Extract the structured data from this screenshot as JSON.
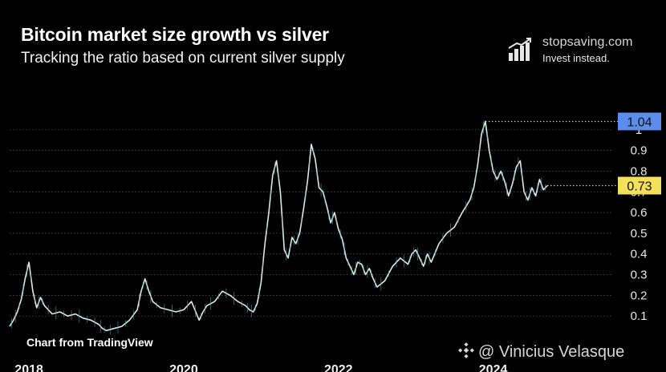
{
  "header": {
    "title": "Bitcoin market size growth vs silver",
    "subtitle": "Tracking the ratio based on current silver supply"
  },
  "brand": {
    "name": "stopsaving.com",
    "tagline": "Invest instead.",
    "icon": "bar-chart-growth-icon"
  },
  "footer": {
    "credit": "Chart from TradingView",
    "watermark": "@ Vinicius Velasque",
    "watermark_icon": "binance-logo-icon"
  },
  "colors": {
    "background": "#000000",
    "line": "#d9e8e6",
    "line_accent": "#5aa89e",
    "max_label": "#5b8def",
    "current_label": "#f5e05a",
    "marker_line": "#9be3c9"
  },
  "chart_data": {
    "type": "line",
    "title": "Bitcoin market size growth vs silver",
    "subtitle": "Tracking the ratio based on current silver supply",
    "xlabel": "",
    "ylabel": "",
    "x_ticks": [
      "2018",
      "2020",
      "2022",
      "2024"
    ],
    "y_ticks": [
      "0.1",
      "0.2",
      "0.3",
      "0.4",
      "0.5",
      "0.6",
      "0.7",
      "0.8",
      "0.9",
      "1"
    ],
    "ylim": [
      0,
      1.1
    ],
    "xlim": [
      2017.75,
      2025.55
    ],
    "grid": true,
    "annotations": [
      {
        "label": "1.04",
        "value": 1.04,
        "kind": "max"
      },
      {
        "label": "0.73",
        "value": 0.73,
        "kind": "current"
      }
    ],
    "series": [
      {
        "x": [
          2017.75,
          2017.8,
          2017.85,
          2017.9,
          2017.95,
          2018.0,
          2018.05,
          2018.1,
          2018.15,
          2018.2,
          2018.3,
          2018.4,
          2018.5,
          2018.6,
          2018.7,
          2018.8,
          2018.9,
          2018.95,
          2019.0,
          2019.1,
          2019.2,
          2019.3,
          2019.4,
          2019.45,
          2019.5,
          2019.55,
          2019.6,
          2019.7,
          2019.8,
          2019.9,
          2020.0,
          2020.1,
          2020.2,
          2020.25,
          2020.3,
          2020.4,
          2020.5,
          2020.6,
          2020.7,
          2020.8,
          2020.85,
          2020.9,
          2020.95,
          2021.0,
          2021.05,
          2021.1,
          2021.15,
          2021.2,
          2021.25,
          2021.3,
          2021.35,
          2021.4,
          2021.45,
          2021.5,
          2021.55,
          2021.6,
          2021.65,
          2021.7,
          2021.75,
          2021.8,
          2021.85,
          2021.9,
          2021.95,
          2022.0,
          2022.05,
          2022.1,
          2022.15,
          2022.2,
          2022.25,
          2022.3,
          2022.35,
          2022.4,
          2022.45,
          2022.5,
          2022.6,
          2022.7,
          2022.8,
          2022.9,
          2022.95,
          2023.0,
          2023.05,
          2023.1,
          2023.15,
          2023.2,
          2023.3,
          2023.4,
          2023.5,
          2023.6,
          2023.7,
          2023.75,
          2023.8,
          2023.85,
          2023.9,
          2023.95,
          2024.0,
          2024.05,
          2024.1,
          2024.15,
          2024.2,
          2024.25,
          2024.3,
          2024.35,
          2024.4,
          2024.45,
          2024.5,
          2024.55,
          2024.6,
          2024.65,
          2024.7
        ],
        "values": [
          0.05,
          0.08,
          0.12,
          0.18,
          0.28,
          0.36,
          0.22,
          0.14,
          0.19,
          0.15,
          0.11,
          0.12,
          0.1,
          0.11,
          0.09,
          0.08,
          0.06,
          0.04,
          0.03,
          0.04,
          0.05,
          0.08,
          0.13,
          0.22,
          0.28,
          0.22,
          0.17,
          0.14,
          0.13,
          0.12,
          0.13,
          0.17,
          0.08,
          0.12,
          0.15,
          0.17,
          0.22,
          0.2,
          0.17,
          0.15,
          0.13,
          0.12,
          0.16,
          0.26,
          0.45,
          0.6,
          0.78,
          0.85,
          0.7,
          0.42,
          0.38,
          0.48,
          0.45,
          0.5,
          0.62,
          0.75,
          0.93,
          0.86,
          0.72,
          0.7,
          0.63,
          0.55,
          0.6,
          0.52,
          0.47,
          0.38,
          0.34,
          0.3,
          0.36,
          0.35,
          0.3,
          0.33,
          0.28,
          0.24,
          0.27,
          0.34,
          0.38,
          0.35,
          0.4,
          0.42,
          0.38,
          0.34,
          0.4,
          0.36,
          0.45,
          0.5,
          0.53,
          0.6,
          0.66,
          0.72,
          0.83,
          0.98,
          1.04,
          0.9,
          0.8,
          0.76,
          0.8,
          0.75,
          0.68,
          0.74,
          0.82,
          0.85,
          0.7,
          0.66,
          0.72,
          0.68,
          0.76,
          0.71,
          0.73
        ]
      }
    ]
  }
}
